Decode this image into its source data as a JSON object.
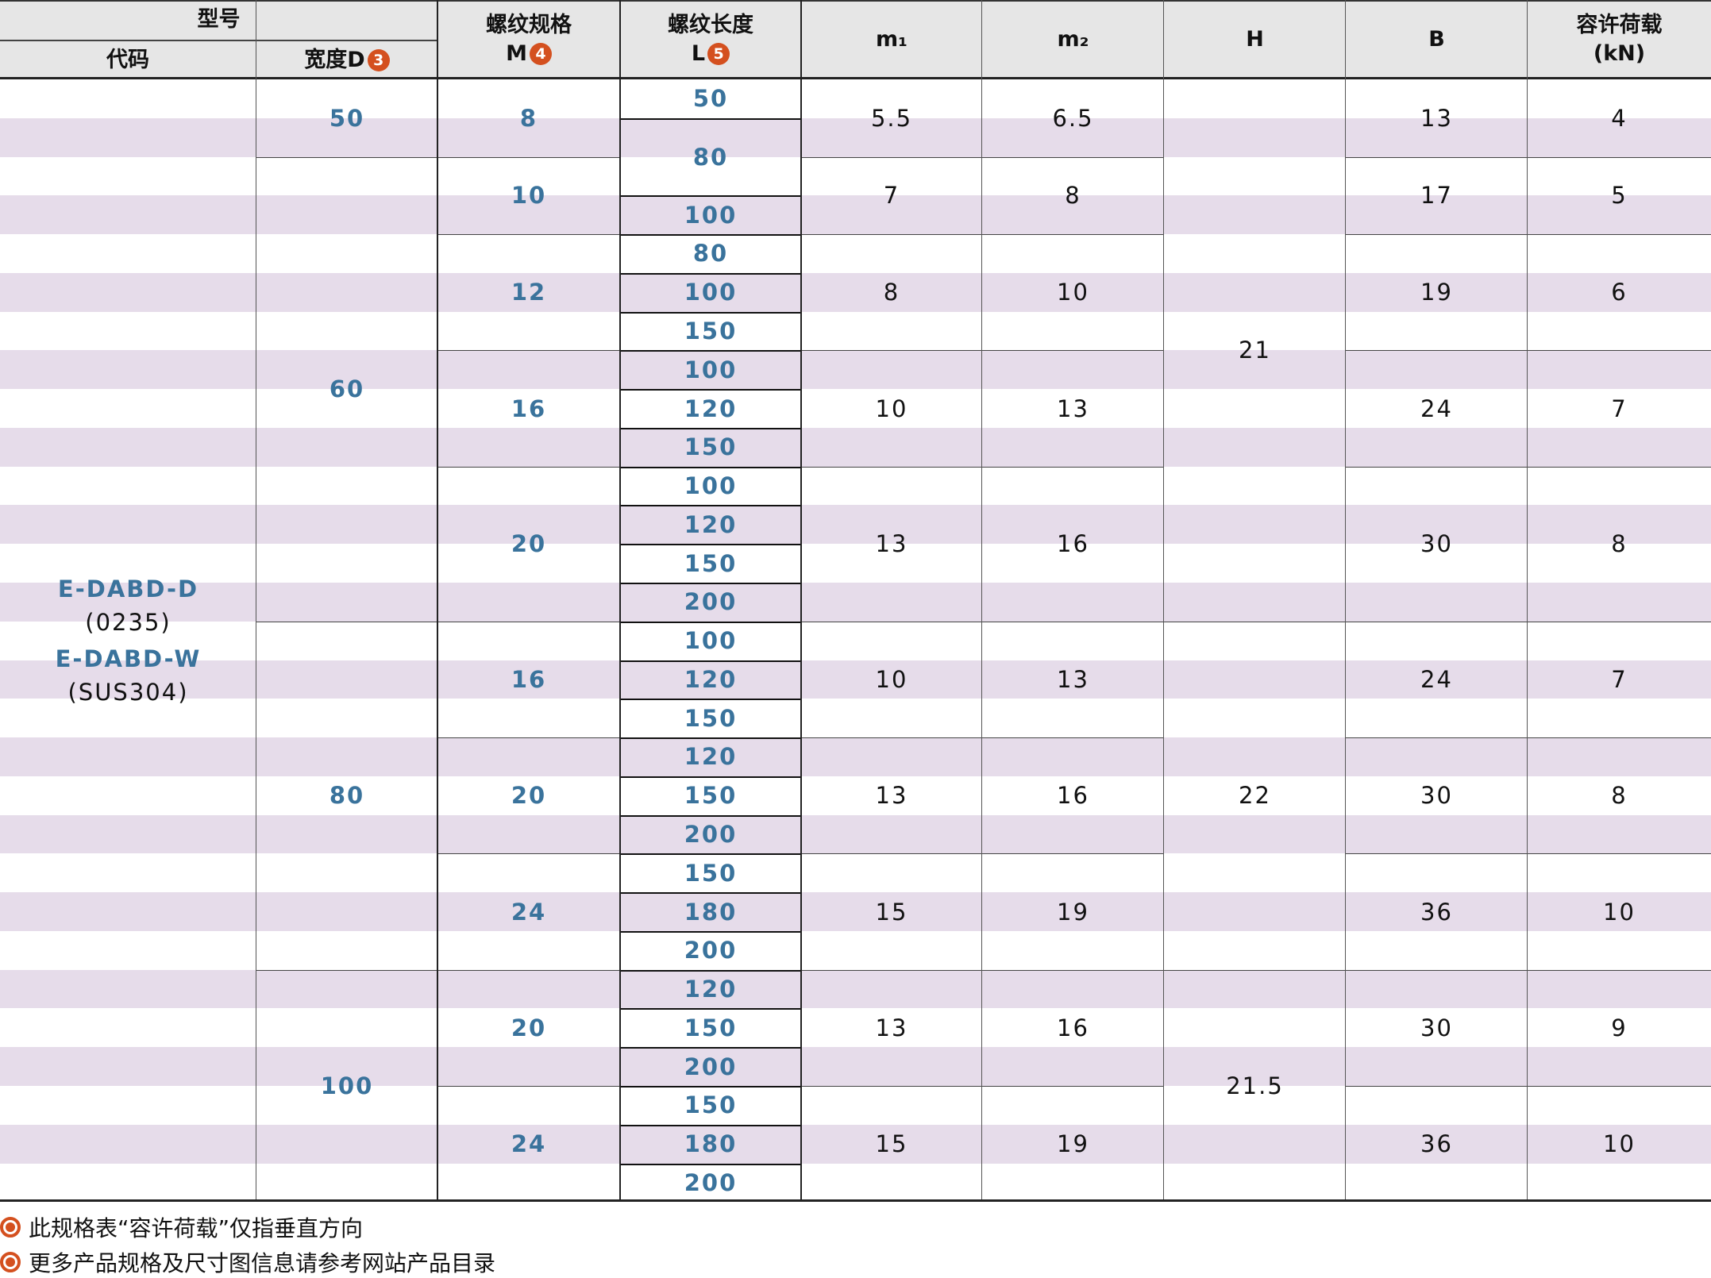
{
  "colors": {
    "accent_blue": "#3a739c",
    "stripe": "#e6dcea",
    "header_bg": "#e6e6e6",
    "badge": "#d4501f"
  },
  "header": {
    "model": "型号",
    "code": "代码",
    "width_d": "宽度D",
    "width_d_badge": "3",
    "thread_spec": "螺纹规格",
    "thread_spec_sub": "M",
    "thread_spec_badge": "4",
    "thread_len": "螺纹长度",
    "thread_len_sub": "L",
    "thread_len_badge": "5",
    "m1": "m₁",
    "m2": "m₂",
    "h": "H",
    "b": "B",
    "load": "容许荷载",
    "load_unit": "(kN)"
  },
  "code_cell": {
    "line1": "E-DABD-D",
    "line2": "(0235)",
    "line3": "E-DABD-W",
    "line4": "(SUS304)"
  },
  "total_rows": 29,
  "columns": {
    "D": [
      {
        "v": "50",
        "span": 2
      },
      {
        "v": "60",
        "span": 12
      },
      {
        "v": "80",
        "span": 9
      },
      {
        "v": "100",
        "span": 6
      }
    ],
    "M": [
      {
        "v": "8",
        "span": 2
      },
      {
        "v": "10",
        "span": 2
      },
      {
        "v": "12",
        "span": 3
      },
      {
        "v": "16",
        "span": 3
      },
      {
        "v": "20",
        "span": 4
      },
      {
        "v": "16",
        "span": 3
      },
      {
        "v": "20",
        "span": 3
      },
      {
        "v": "24",
        "span": 3
      },
      {
        "v": "20",
        "span": 3
      },
      {
        "v": "24",
        "span": 3
      }
    ],
    "L": [
      {
        "v": "50",
        "span": 1
      },
      {
        "v": "80",
        "span": 2
      },
      {
        "v": "100",
        "span": 1
      },
      {
        "v": "80",
        "span": 1
      },
      {
        "v": "100",
        "span": 1
      },
      {
        "v": "150",
        "span": 1
      },
      {
        "v": "100",
        "span": 1
      },
      {
        "v": "120",
        "span": 1
      },
      {
        "v": "150",
        "span": 1
      },
      {
        "v": "100",
        "span": 1
      },
      {
        "v": "120",
        "span": 1
      },
      {
        "v": "150",
        "span": 1
      },
      {
        "v": "200",
        "span": 1
      },
      {
        "v": "100",
        "span": 1
      },
      {
        "v": "120",
        "span": 1
      },
      {
        "v": "150",
        "span": 1
      },
      {
        "v": "120",
        "span": 1
      },
      {
        "v": "150",
        "span": 1
      },
      {
        "v": "200",
        "span": 1
      },
      {
        "v": "150",
        "span": 1
      },
      {
        "v": "180",
        "span": 1
      },
      {
        "v": "200",
        "span": 1
      },
      {
        "v": "120",
        "span": 1
      },
      {
        "v": "150",
        "span": 1
      },
      {
        "v": "200",
        "span": 1
      },
      {
        "v": "150",
        "span": 1
      },
      {
        "v": "180",
        "span": 1
      },
      {
        "v": "200",
        "span": 1
      }
    ],
    "m1": [
      "5.5",
      "7",
      "8",
      "10",
      "13",
      "10",
      "13",
      "15",
      "13",
      "15"
    ],
    "m2": [
      "6.5",
      "8",
      "10",
      "13",
      "16",
      "13",
      "16",
      "19",
      "16",
      "19"
    ],
    "H": [
      {
        "v": "21",
        "span": 14
      },
      {
        "v": "22",
        "span": 9
      },
      {
        "v": "21.5",
        "span": 6
      }
    ],
    "B": [
      "13",
      "17",
      "19",
      "24",
      "30",
      "24",
      "30",
      "36",
      "30",
      "36"
    ],
    "load": [
      "4",
      "5",
      "6",
      "7",
      "8",
      "7",
      "8",
      "10",
      "9",
      "10"
    ]
  },
  "notes": [
    "此规格表“容许荷载”仅指垂直方向",
    "更多产品规格及尺寸图信息请参考网站产品目录"
  ]
}
